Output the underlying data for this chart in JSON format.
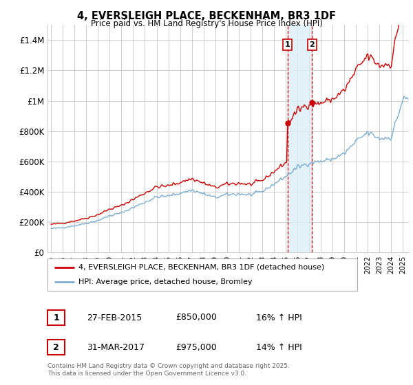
{
  "title": "4, EVERSLEIGH PLACE, BECKENHAM, BR3 1DF",
  "subtitle": "Price paid vs. HM Land Registry's House Price Index (HPI)",
  "background_color": "#ffffff",
  "grid_color": "#cccccc",
  "legend_line1": "4, EVERSLEIGH PLACE, BECKENHAM, BR3 1DF (detached house)",
  "legend_line2": "HPI: Average price, detached house, Bromley",
  "line1_color": "#cc0000",
  "line2_color": "#7aadd4",
  "sale1_date": "27-FEB-2015",
  "sale1_price": "£850,000",
  "sale1_hpi": "16% ↑ HPI",
  "sale1_x": 2015.15,
  "sale1_y": 850000,
  "sale2_date": "31-MAR-2017",
  "sale2_price": "£975,000",
  "sale2_hpi": "14% ↑ HPI",
  "sale2_x": 2017.25,
  "sale2_y": 975000,
  "shade_color": "#ddeef8",
  "vline_color": "#cc0000",
  "footer": "Contains HM Land Registry data © Crown copyright and database right 2025.\nThis data is licensed under the Open Government Licence v3.0.",
  "ylim": [
    0,
    1500000
  ],
  "yticks": [
    0,
    200000,
    400000,
    600000,
    800000,
    1000000,
    1200000,
    1400000
  ],
  "ytick_labels": [
    "£0",
    "£200K",
    "£400K",
    "£600K",
    "£800K",
    "£1M",
    "£1.2M",
    "£1.4M"
  ],
  "xlim_start": 1994.7,
  "xlim_end": 2025.5,
  "seed": 42
}
